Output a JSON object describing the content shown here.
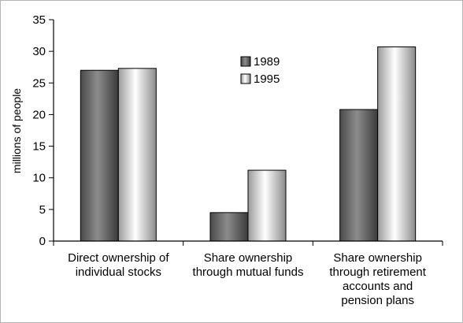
{
  "chart_data": {
    "type": "bar",
    "categories": [
      [
        "Direct ownership of",
        "individual stocks"
      ],
      [
        "Share ownership",
        "through mutual funds"
      ],
      [
        "Share ownership",
        "through retirement",
        "accounts and",
        "pension plans"
      ]
    ],
    "series": [
      {
        "name": "1989",
        "values": [
          27.0,
          4.5,
          20.8
        ],
        "style": "dark-gradient"
      },
      {
        "name": "1995",
        "values": [
          27.3,
          11.2,
          30.7
        ],
        "style": "light-gradient"
      }
    ],
    "title": "",
    "xlabel": "",
    "ylabel": "millions of people",
    "ylim": [
      0,
      35
    ],
    "yticks": [
      0,
      5,
      10,
      15,
      20,
      25,
      30,
      35
    ],
    "grid": false,
    "legend_position": "top-center"
  }
}
